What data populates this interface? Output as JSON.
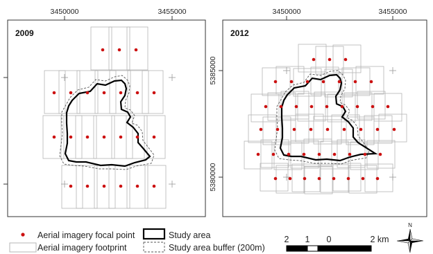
{
  "panels": [
    {
      "year": "2009",
      "x_ticks": [
        "3450000",
        "3455000"
      ]
    },
    {
      "year": "2012",
      "x_ticks": [
        "3450000",
        "3455000"
      ],
      "y_ticks": [
        "5385000",
        "5380000"
      ]
    }
  ],
  "legend": {
    "focal_point": "Aerial imagery focal point",
    "footprint": "Aerial imagery footprint",
    "study_area": "Study area",
    "buffer": "Study area buffer (200m)"
  },
  "scale_bar": {
    "labels": [
      "2",
      "1",
      "0",
      "2 km"
    ]
  },
  "north_arrow": {
    "label": "N"
  },
  "colors": {
    "focal_point": "#cc1111",
    "footprint": "#b5b5b5",
    "study_area": "#000000",
    "buffer": "#555555"
  }
}
